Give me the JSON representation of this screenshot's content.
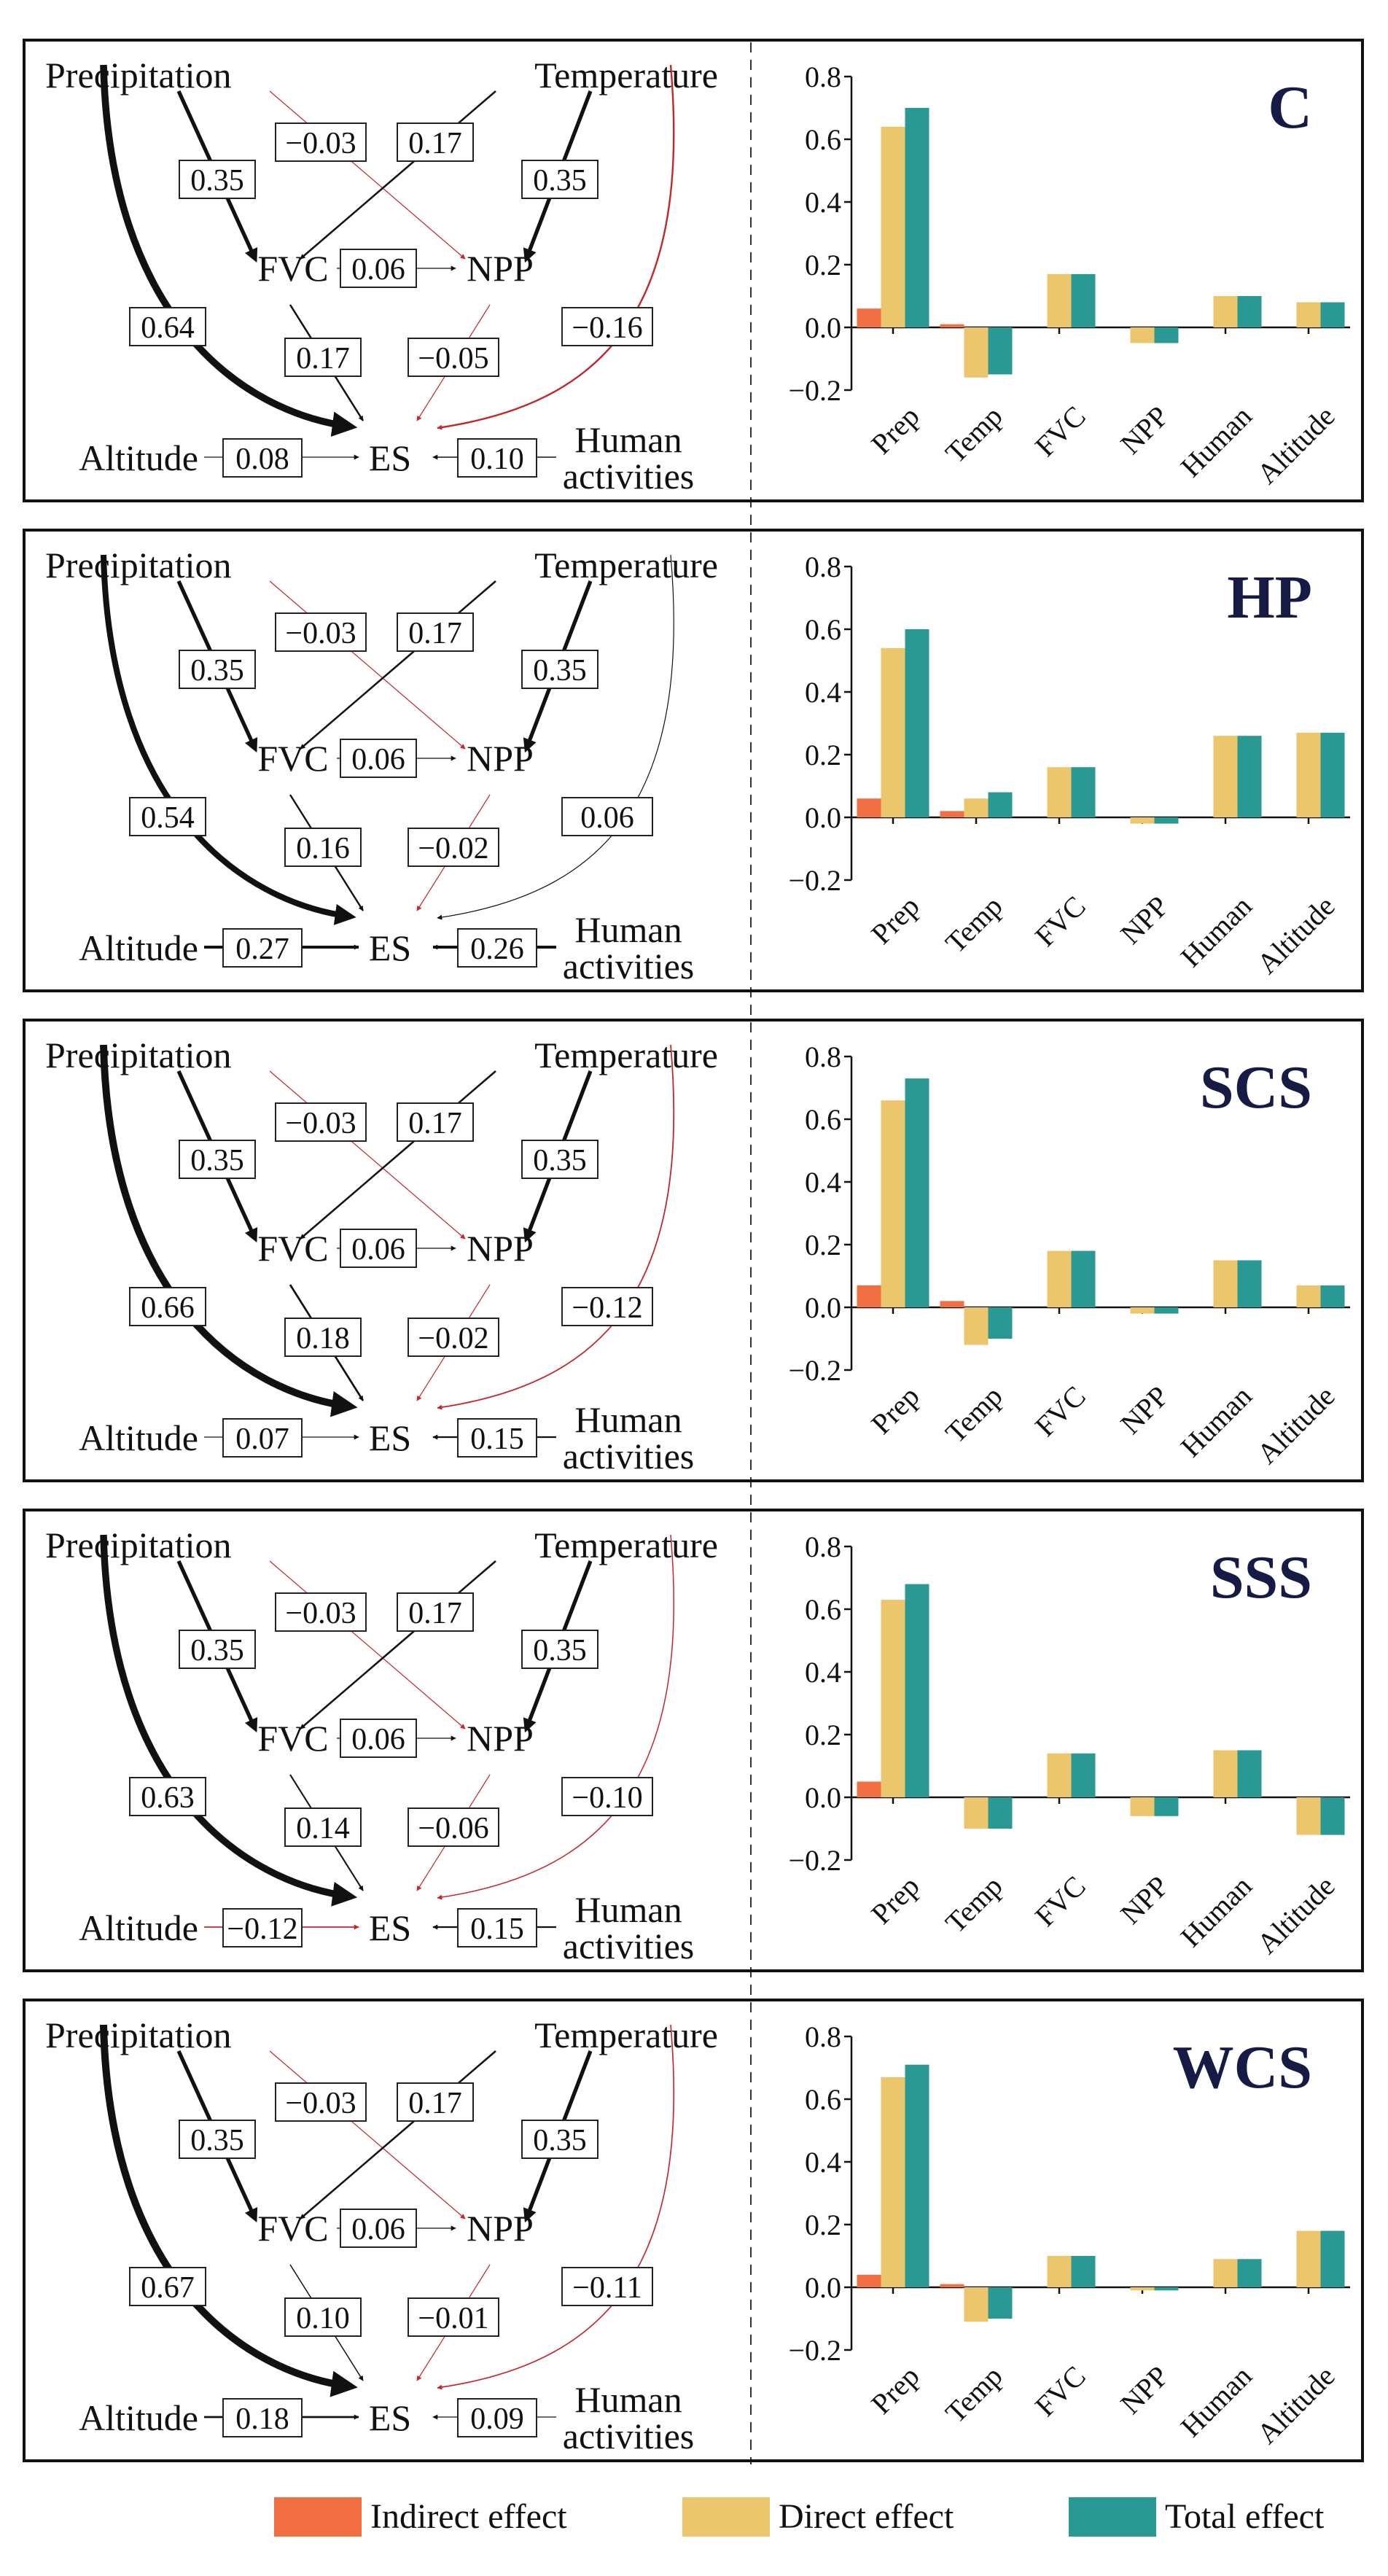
{
  "node_labels": {
    "precip": "Precipitation",
    "temp": "Temperature",
    "fvc": "FVC",
    "npp": "NPP",
    "es": "ES",
    "alt": "Altitude",
    "hum1": "Human",
    "hum2": "activities"
  },
  "legend": [
    {
      "name": "Indirect effect",
      "color": "#f26f43"
    },
    {
      "name": "Direct effect",
      "color": "#ecc66c"
    },
    {
      "name": "Total effect",
      "color": "#2a9994"
    }
  ],
  "colors": {
    "positive_path": "#111111",
    "negative_path": "#c0282e"
  },
  "chart_data": [
    {
      "type": "bar",
      "title": "C",
      "categories": [
        "Prep",
        "Temp",
        "FVC",
        "NPP",
        "Human",
        "Altitude"
      ],
      "ylim": [
        -0.2,
        0.8
      ],
      "yticks": [
        "0.8",
        "0.6",
        "0.4",
        "0.2",
        "0.0",
        "−0.2"
      ],
      "series": [
        {
          "name": "Indirect effect",
          "values": [
            0.06,
            0.01,
            0.0,
            0.0,
            0.0,
            0.0
          ]
        },
        {
          "name": "Direct effect",
          "values": [
            0.64,
            -0.16,
            0.17,
            -0.05,
            0.1,
            0.08
          ]
        },
        {
          "name": "Total effect",
          "values": [
            0.7,
            -0.15,
            0.17,
            -0.05,
            0.1,
            0.08
          ]
        }
      ],
      "paths": {
        "precip_es": "0.64",
        "precip_fvc": "0.35",
        "precip_npp": "−0.03",
        "temp_fvc": "0.17",
        "temp_npp": "0.35",
        "temp_es": "−0.16",
        "fvc_npp": "0.06",
        "fvc_es": "0.17",
        "npp_es": "−0.05",
        "alt_es": "0.08",
        "hum_es": "0.10"
      }
    },
    {
      "type": "bar",
      "title": "HP",
      "categories": [
        "Prep",
        "Temp",
        "FVC",
        "NPP",
        "Human",
        "Altitude"
      ],
      "ylim": [
        -0.2,
        0.8
      ],
      "yticks": [
        "0.8",
        "0.6",
        "0.4",
        "0.2",
        "0.0",
        "−0.2"
      ],
      "series": [
        {
          "name": "Indirect effect",
          "values": [
            0.06,
            0.02,
            0.0,
            0.0,
            0.0,
            0.0
          ]
        },
        {
          "name": "Direct effect",
          "values": [
            0.54,
            0.06,
            0.16,
            -0.02,
            0.26,
            0.27
          ]
        },
        {
          "name": "Total effect",
          "values": [
            0.6,
            0.08,
            0.16,
            -0.02,
            0.26,
            0.27
          ]
        }
      ],
      "paths": {
        "precip_es": "0.54",
        "precip_fvc": "0.35",
        "precip_npp": "−0.03",
        "temp_fvc": "0.17",
        "temp_npp": "0.35",
        "temp_es": "0.06",
        "fvc_npp": "0.06",
        "fvc_es": "0.16",
        "npp_es": "−0.02",
        "alt_es": "0.27",
        "hum_es": "0.26"
      }
    },
    {
      "type": "bar",
      "title": "SCS",
      "categories": [
        "Prep",
        "Temp",
        "FVC",
        "NPP",
        "Human",
        "Altitude"
      ],
      "ylim": [
        -0.2,
        0.8
      ],
      "yticks": [
        "0.8",
        "0.6",
        "0.4",
        "0.2",
        "0.0",
        "−0.2"
      ],
      "series": [
        {
          "name": "Indirect effect",
          "values": [
            0.07,
            0.02,
            0.0,
            0.0,
            0.0,
            0.0
          ]
        },
        {
          "name": "Direct effect",
          "values": [
            0.66,
            -0.12,
            0.18,
            -0.02,
            0.15,
            0.07
          ]
        },
        {
          "name": "Total effect",
          "values": [
            0.73,
            -0.1,
            0.18,
            -0.02,
            0.15,
            0.07
          ]
        }
      ],
      "paths": {
        "precip_es": "0.66",
        "precip_fvc": "0.35",
        "precip_npp": "−0.03",
        "temp_fvc": "0.17",
        "temp_npp": "0.35",
        "temp_es": "−0.12",
        "fvc_npp": "0.06",
        "fvc_es": "0.18",
        "npp_es": "−0.02",
        "alt_es": "0.07",
        "hum_es": "0.15"
      }
    },
    {
      "type": "bar",
      "title": "SSS",
      "categories": [
        "Prep",
        "Temp",
        "FVC",
        "NPP",
        "Human",
        "Altitude"
      ],
      "ylim": [
        -0.2,
        0.8
      ],
      "yticks": [
        "0.8",
        "0.6",
        "0.4",
        "0.2",
        "0.0",
        "−0.2"
      ],
      "series": [
        {
          "name": "Indirect effect",
          "values": [
            0.05,
            0.0,
            0.0,
            0.0,
            0.0,
            0.0
          ]
        },
        {
          "name": "Direct effect",
          "values": [
            0.63,
            -0.1,
            0.14,
            -0.06,
            0.15,
            -0.12
          ]
        },
        {
          "name": "Total effect",
          "values": [
            0.68,
            -0.1,
            0.14,
            -0.06,
            0.15,
            -0.12
          ]
        }
      ],
      "paths": {
        "precip_es": "0.63",
        "precip_fvc": "0.35",
        "precip_npp": "−0.03",
        "temp_fvc": "0.17",
        "temp_npp": "0.35",
        "temp_es": "−0.10",
        "fvc_npp": "0.06",
        "fvc_es": "0.14",
        "npp_es": "−0.06",
        "alt_es": "−0.12",
        "hum_es": "0.15"
      }
    },
    {
      "type": "bar",
      "title": "WCS",
      "categories": [
        "Prep",
        "Temp",
        "FVC",
        "NPP",
        "Human",
        "Altitude"
      ],
      "ylim": [
        -0.2,
        0.8
      ],
      "yticks": [
        "0.8",
        "0.6",
        "0.4",
        "0.2",
        "0.0",
        "−0.2"
      ],
      "series": [
        {
          "name": "Indirect effect",
          "values": [
            0.04,
            0.01,
            0.0,
            0.0,
            0.0,
            0.0
          ]
        },
        {
          "name": "Direct effect",
          "values": [
            0.67,
            -0.11,
            0.1,
            -0.01,
            0.09,
            0.18
          ]
        },
        {
          "name": "Total effect",
          "values": [
            0.71,
            -0.1,
            0.1,
            -0.01,
            0.09,
            0.18
          ]
        }
      ],
      "paths": {
        "precip_es": "0.67",
        "precip_fvc": "0.35",
        "precip_npp": "−0.03",
        "temp_fvc": "0.17",
        "temp_npp": "0.35",
        "temp_es": "−0.11",
        "fvc_npp": "0.06",
        "fvc_es": "0.10",
        "npp_es": "−0.01",
        "alt_es": "0.18",
        "hum_es": "0.09"
      }
    }
  ]
}
